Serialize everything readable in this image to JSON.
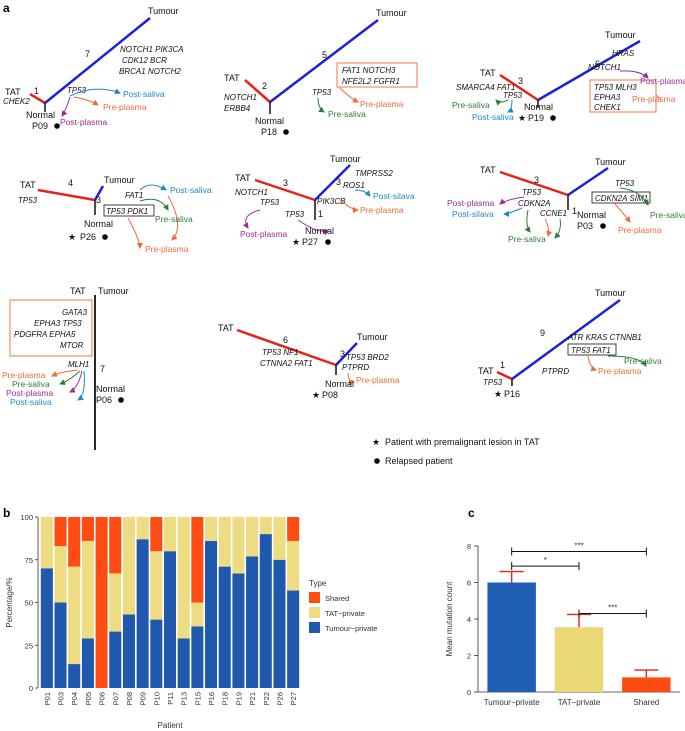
{
  "panel_labels": {
    "a": "a",
    "b": "b",
    "c": "c"
  },
  "colors": {
    "trunk_red": "#e5231b",
    "branch_blue": "#1a22d6",
    "post_saliva": "#1e87c6",
    "pre_plasma": "#ef6b3a",
    "post_plasma": "#9b2c9b",
    "pre_saliva": "#2c7d3b",
    "shared": "#ff4c13",
    "tat_private": "#eedc83",
    "tumour_private": "#1f58ad",
    "bar_tumour": "#1f5fb4",
    "bar_tat": "#ead776",
    "bar_shared": "#ff4b0f",
    "err": "#e5231b",
    "grid": "#d0d0d0"
  },
  "legend_a": {
    "premalignant": "Patient with premalignant lesion in TAT",
    "relapsed": "Relapsed patient"
  },
  "trees": {
    "p09": {
      "patient": "P09",
      "tat": "TAT",
      "tumour": "Tumour",
      "normal": "Normal",
      "t1": "1",
      "t2": "7",
      "chek2": "CHEK2",
      "g1": "NOTCH1  PIK3CA",
      "g2": "CDK12  BCR",
      "g3": "BRCA1  NOTCH2",
      "tp53": "TP53",
      "a1": "Post-saliva",
      "a2": "Pre-plasma",
      "a3": "Post-plasma"
    },
    "p18": {
      "patient": "P18",
      "tat": "TAT",
      "tumour": "Tumour",
      "normal": "Normal",
      "t1": "2",
      "t2": "5",
      "g1": "NOTCH1",
      "g2": "ERBB4",
      "box1": "FAT1  NOTCH3",
      "box2": "NFE2L2  FGFR1",
      "tp53": "TP53",
      "a1": "Pre-plasma",
      "a2": "Pre-saliva"
    },
    "p19": {
      "patient": "P19",
      "tat": "TAT",
      "tumour": "Tumour",
      "normal": "Normal",
      "t1": "3",
      "t2": "6",
      "g1": "SMARCA4  FAT1",
      "tp53": "TP53",
      "hras": "HRAS",
      "notch1": "NOTCH1",
      "box1": "TP53  MLH3",
      "box2": "EPHA3",
      "box3": "CHEK1",
      "a1": "Pre-saliva",
      "a2": "Post-saliva",
      "a3": "Post-plasma",
      "a4": "Pre-plasma"
    },
    "p26": {
      "patient": "P26",
      "tat": "TAT",
      "tumour": "Tumour",
      "normal": "Normal",
      "t1": "4",
      "t2": "3",
      "tp53": "TP53",
      "fat1": "FAT1",
      "box": "TP53  PDK1",
      "a1": "Post-saliva",
      "a2": "Pre-saliva",
      "a3": "Pre-plasma"
    },
    "p27": {
      "patient": "P27",
      "tat": "TAT",
      "tumour": "Tumour",
      "normal": "Normal",
      "t1": "3",
      "t2": "3",
      "t3": "1",
      "notch1": "NOTCH1",
      "tp53a": "TP53",
      "tp53b": "TP53",
      "tmprss2": "TMPRSS2",
      "ros1": "ROS1",
      "pik3cb": "PIK3CB",
      "a1": "Post-silava",
      "a2": "Pre-plasma",
      "a3": "Post-plasma"
    },
    "p03": {
      "patient": "P03",
      "tat": "TAT",
      "tumour": "Tumour",
      "normal": "Normal",
      "t1": "3",
      "t2": "1",
      "tp53a": "TP53",
      "cdkn2a": "CDKN2A",
      "ccne1": "CCNE1",
      "tp53b": "TP53",
      "box": "CDKN2A  SIM1",
      "a1": "Post-plasma",
      "a2": "Post-silava",
      "a3": "Pre-saliva",
      "a4": "Pre-saliva",
      "a5": "Pre-plasma"
    },
    "p06": {
      "patient": "P06",
      "tat": "TAT",
      "tumour": "Tumour",
      "normal": "Normal",
      "t1": "7",
      "b1": "GATA3",
      "b2": "EPHA3  TP53",
      "b3": "PDGFRA  EPHA5",
      "b4": "MTOR",
      "mlh1": "MLH1",
      "a1": "Pre-plasma",
      "a2": "Pre-saliva",
      "a3": "Post-plasma",
      "a4": "Post-saliva"
    },
    "p08": {
      "patient": "P08",
      "tat": "TAT",
      "tumour": "Tumour",
      "normal": "Normal",
      "t1": "6",
      "t2": "3",
      "g1": "TP53  NF1",
      "g2": "CTNNA2  FAT1",
      "g3": "TP53  BRD2",
      "g4": "PTPRD",
      "a1": "Pre-plasma"
    },
    "p16": {
      "patient": "P16",
      "tat": "TAT",
      "tumour": "Tumour",
      "normal": "Normal",
      "t1": "1",
      "t2": "9",
      "tp53": "TP53",
      "g1": "ATR  KRAS  CTNNB1",
      "box": "TP53  FAT1",
      "ptprd": "PTPRD",
      "a1": "Pre-plasma",
      "a2": "Pre-saliva"
    }
  },
  "chart_data": [
    {
      "type": "bar",
      "stacked": true,
      "xlabel": "Patient",
      "ylabel": "Percentage/%",
      "ylim": [
        0,
        100
      ],
      "yticks": [
        0,
        25,
        50,
        75,
        100
      ],
      "legend_title": "Type",
      "legend_placement": "right",
      "categories": [
        "P01",
        "P03",
        "P04",
        "P05",
        "P06",
        "P07",
        "P08",
        "P09",
        "P10",
        "P11",
        "P13",
        "P15",
        "P16",
        "P18",
        "P19",
        "P21",
        "P22",
        "P26",
        "P27"
      ],
      "series": [
        {
          "name": "Tumour−private",
          "values": [
            70,
            50,
            14,
            29,
            0,
            33,
            43,
            87,
            40,
            80,
            29,
            36,
            86,
            71,
            67,
            77,
            90,
            75,
            57
          ]
        },
        {
          "name": "TAT−private",
          "values": [
            30,
            33,
            57,
            57,
            0,
            34,
            57,
            13,
            40,
            20,
            71,
            14,
            14,
            29,
            33,
            23,
            10,
            25,
            29
          ]
        },
        {
          "name": "Shared",
          "values": [
            0,
            17,
            29,
            14,
            100,
            33,
            0,
            0,
            20,
            0,
            0,
            50,
            0,
            0,
            0,
            0,
            0,
            0,
            14
          ]
        }
      ]
    },
    {
      "type": "bar",
      "xlabel": "",
      "ylabel": "Mean mutation count",
      "ylim": [
        0,
        8
      ],
      "yticks": [
        0,
        2,
        4,
        6,
        8
      ],
      "categories": [
        "Tumour−private",
        "TAT−private",
        "Shared"
      ],
      "values": [
        6.0,
        3.55,
        0.8
      ],
      "errors": [
        0.6,
        0.7,
        0.4
      ],
      "significance": [
        {
          "from": 0,
          "to": 2,
          "label": "***"
        },
        {
          "from": 0,
          "to": 1,
          "label": "*"
        },
        {
          "from": 1,
          "to": 2,
          "label": "***"
        }
      ]
    }
  ]
}
